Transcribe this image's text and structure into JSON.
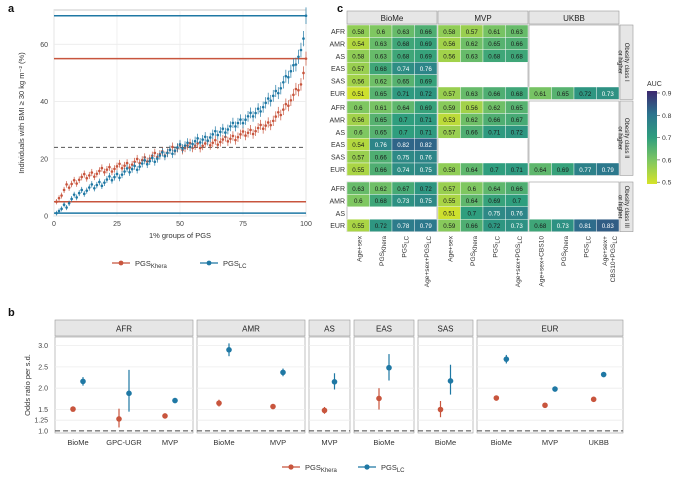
{
  "colors": {
    "khera": "#c8553d",
    "lc": "#1f78a4",
    "strip_bg": "#e6e6e6",
    "grid": "#ececec"
  },
  "chart_data": [
    {
      "panel": "a",
      "type": "scatter",
      "ylabel": "Individuals with BMI ≥ 30 kg m⁻² (%)",
      "xlabel": "1% groups of PGS",
      "xlim": [
        0,
        100
      ],
      "ylim": [
        0,
        72
      ],
      "xticks": [
        "0",
        "25",
        "50",
        "75",
        "100"
      ],
      "yticks": [
        "0",
        "20",
        "40",
        "60"
      ],
      "hlines_khera": [
        55,
        5
      ],
      "hlines_lc": [
        70,
        1
      ],
      "dashed_mean": 24,
      "grid": true,
      "legend": [
        "PGS_Khera",
        "PGS_LC"
      ],
      "legend_position": "bottom",
      "series": [
        {
          "name": "PGS_Khera",
          "anchors_x": [
            1,
            5,
            10,
            20,
            30,
            40,
            50,
            60,
            70,
            80,
            85,
            90,
            95,
            98,
            99,
            100
          ],
          "anchors_y": [
            5,
            10,
            13,
            16,
            18,
            21,
            24,
            25,
            27,
            30,
            32,
            36,
            42,
            46,
            50,
            55
          ]
        },
        {
          "name": "PGS_LC",
          "anchors_x": [
            1,
            5,
            10,
            20,
            30,
            40,
            50,
            60,
            70,
            80,
            85,
            90,
            95,
            98,
            99,
            100
          ],
          "anchors_y": [
            1,
            4,
            8,
            12,
            16,
            20,
            24,
            27,
            31,
            36,
            40,
            45,
            52,
            58,
            62,
            70
          ]
        }
      ]
    },
    {
      "panel": "c",
      "type": "heatmap",
      "legend_title": "AUC",
      "legend_ticks": [
        "0.9",
        "0.8",
        "0.7",
        "0.6",
        "0.5"
      ],
      "color_range": [
        0.5,
        0.9
      ],
      "column_groups": [
        "BioMe",
        "MVP",
        "UKBB"
      ],
      "column_labels": {
        "BioMe": [
          "Age+sex",
          "PGS_Khera",
          "PGS_LC",
          "Age+sex+PGS_LC"
        ],
        "MVP": [
          "Age+sex",
          "PGS_Khera",
          "PGS_LC",
          "Age+sex+PGS_LC"
        ],
        "UKBB": [
          "Age+sex+CBS10",
          "PGS_Khera",
          "PGS_LC",
          "Age+sex+CBS10+PGS_LC"
        ]
      },
      "row_groups": [
        {
          "label": "Obesity class I or higher",
          "rows": [
            "AFR",
            "AMR",
            "AS",
            "EAS",
            "SAS",
            "EUR"
          ],
          "BioMe": [
            [
              0.58,
              0.6,
              0.63,
              0.66
            ],
            [
              0.54,
              0.63,
              0.68,
              0.69
            ],
            [
              0.58,
              0.63,
              0.68,
              0.69
            ],
            [
              0.57,
              0.68,
              0.74,
              0.76
            ],
            [
              0.56,
              0.62,
              0.65,
              0.69
            ],
            [
              0.51,
              0.65,
              0.71,
              0.72
            ]
          ],
          "MVP": [
            [
              0.58,
              0.57,
              0.61,
              0.63
            ],
            [
              0.56,
              0.62,
              0.65,
              0.66
            ],
            [
              0.56,
              0.63,
              0.68,
              0.68
            ],
            null,
            null,
            [
              0.57,
              0.63,
              0.66,
              0.68
            ]
          ],
          "UKBB": [
            null,
            null,
            null,
            null,
            null,
            [
              0.61,
              0.65,
              0.72,
              0.73
            ]
          ]
        },
        {
          "label": "Obesity class II or higher",
          "rows": [
            "AFR",
            "AMR",
            "AS",
            "EAS",
            "SAS",
            "EUR"
          ],
          "BioMe": [
            [
              0.6,
              0.61,
              0.64,
              0.69
            ],
            [
              0.56,
              0.65,
              0.7,
              0.71
            ],
            [
              0.6,
              0.65,
              0.7,
              0.71
            ],
            [
              0.54,
              0.76,
              0.82,
              0.82
            ],
            [
              0.57,
              0.66,
              0.75,
              0.76
            ],
            [
              0.55,
              0.66,
              0.74,
              0.75
            ]
          ],
          "MVP": [
            [
              0.59,
              0.56,
              0.62,
              0.65
            ],
            [
              0.53,
              0.62,
              0.66,
              0.67
            ],
            [
              0.57,
              0.66,
              0.71,
              0.72
            ],
            null,
            null,
            [
              0.58,
              0.64,
              0.7,
              0.71
            ]
          ],
          "UKBB": [
            null,
            null,
            null,
            null,
            null,
            [
              0.64,
              0.69,
              0.77,
              0.79
            ]
          ]
        },
        {
          "label": "Obesity class III or higher",
          "rows": [
            "AFR",
            "AMR",
            "AS",
            "EUR"
          ],
          "BioMe": [
            [
              0.63,
              0.62,
              0.67,
              0.72
            ],
            [
              0.6,
              0.68,
              0.73,
              0.75
            ],
            null,
            [
              0.55,
              0.72,
              0.78,
              0.79
            ]
          ],
          "MVP": [
            [
              0.57,
              0.6,
              0.64,
              0.66
            ],
            [
              0.55,
              0.64,
              0.69,
              0.7
            ],
            [
              0.51,
              0.7,
              0.75,
              0.76
            ],
            [
              0.59,
              0.66,
              0.72,
              0.73
            ]
          ],
          "UKBB": [
            null,
            null,
            null,
            [
              0.68,
              0.73,
              0.81,
              0.83
            ]
          ]
        }
      ]
    },
    {
      "panel": "b",
      "type": "scatter",
      "ylabel": "Odds ratio per s.d.",
      "yticks": [
        "1.0",
        "1.25",
        "1.5",
        "2.0",
        "2.5",
        "3.0"
      ],
      "ytick_values": [
        1.0,
        1.25,
        1.5,
        2.0,
        2.5,
        3.0
      ],
      "ylim": [
        0.95,
        3.2
      ],
      "reference_line": 1.0,
      "legend": [
        "PGS_Khera",
        "PGS_LC"
      ],
      "legend_position": "bottom",
      "facets": [
        {
          "name": "AFR",
          "cohorts": [
            {
              "cohort": "BioMe",
              "khera": [
                1.51,
                1.45,
                1.57
              ],
              "lc": [
                2.16,
                2.06,
                2.26
              ]
            },
            {
              "cohort": "GPC-UGR",
              "khera": [
                1.28,
                1.08,
                1.52
              ],
              "lc": [
                1.88,
                1.45,
                2.43
              ]
            },
            {
              "cohort": "MVP",
              "khera": [
                1.35,
                1.33,
                1.37
              ],
              "lc": [
                1.71,
                1.67,
                1.75
              ]
            }
          ]
        },
        {
          "name": "AMR",
          "cohorts": [
            {
              "cohort": "BioMe",
              "khera": [
                1.65,
                1.57,
                1.73
              ],
              "lc": [
                2.9,
                2.75,
                3.05
              ]
            },
            {
              "cohort": "MVP",
              "khera": [
                1.57,
                1.52,
                1.62
              ],
              "lc": [
                2.37,
                2.28,
                2.46
              ]
            }
          ]
        },
        {
          "name": "AS",
          "cohorts": [
            {
              "cohort": "MVP",
              "khera": [
                1.48,
                1.4,
                1.56
              ],
              "lc": [
                2.15,
                1.97,
                2.35
              ]
            }
          ]
        },
        {
          "name": "EAS",
          "cohorts": [
            {
              "cohort": "BioMe",
              "khera": [
                1.76,
                1.5,
                2.0
              ],
              "lc": [
                2.48,
                2.18,
                2.8
              ]
            }
          ]
        },
        {
          "name": "SAS",
          "cohorts": [
            {
              "cohort": "BioMe",
              "khera": [
                1.5,
                1.32,
                1.7
              ],
              "lc": [
                2.17,
                1.85,
                2.55
              ]
            }
          ]
        },
        {
          "name": "EUR",
          "cohorts": [
            {
              "cohort": "BioMe",
              "khera": [
                1.77,
                1.72,
                1.82
              ],
              "lc": [
                2.68,
                2.58,
                2.78
              ]
            },
            {
              "cohort": "MVP",
              "khera": [
                1.6,
                1.59,
                1.61
              ],
              "lc": [
                1.98,
                1.96,
                2.0
              ]
            },
            {
              "cohort": "UKBB",
              "khera": [
                1.74,
                1.73,
                1.75
              ],
              "lc": [
                2.32,
                2.3,
                2.34
              ]
            }
          ]
        }
      ]
    }
  ]
}
